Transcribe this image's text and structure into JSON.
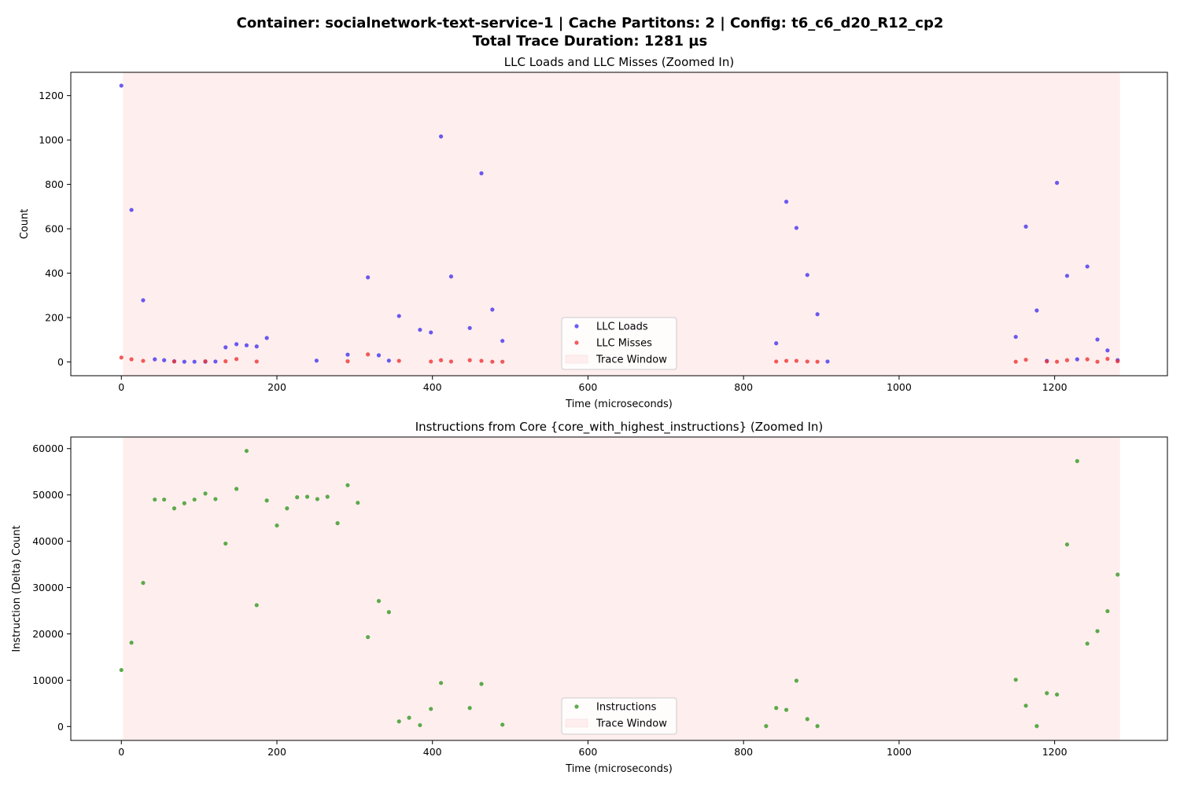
{
  "figure": {
    "title_line1": "Container: socialnetwork-text-service-1 | Cache Partitons: 2 | Config: t6_c6_d20_R12_cp2",
    "title_line2": "Total Trace Duration: 1281 µs"
  },
  "chart_data": [
    {
      "type": "scatter",
      "title": "LLC Loads and LLC Misses (Zoomed In)",
      "xlabel": "Time (microseconds)",
      "ylabel": "Count",
      "xlim": [
        -65,
        1345
      ],
      "ylim": [
        -62,
        1305
      ],
      "xticks": [
        0,
        200,
        400,
        600,
        800,
        1000,
        1200
      ],
      "yticks": [
        0,
        200,
        400,
        600,
        800,
        1000,
        1200
      ],
      "grid": false,
      "legend_position": "lower-center",
      "trace_window": {
        "label": "Trace Window",
        "x_start": 2,
        "x_end": 1284,
        "color": "#ffeeee"
      },
      "series": [
        {
          "name": "LLC Loads",
          "color": "#4433ee",
          "x": [
            0,
            13,
            28,
            43,
            55,
            68,
            81,
            94,
            108,
            121,
            134,
            148,
            161,
            174,
            187,
            251,
            291,
            317,
            331,
            344,
            357,
            384,
            398,
            411,
            424,
            448,
            463,
            477,
            490,
            842,
            855,
            868,
            882,
            895,
            908,
            1150,
            1163,
            1177,
            1190,
            1203,
            1216,
            1229,
            1242,
            1255,
            1268,
            1281
          ],
          "y": [
            1245,
            685,
            278,
            12,
            8,
            3,
            1,
            1,
            1,
            2,
            66,
            80,
            75,
            70,
            108,
            6,
            33,
            381,
            30,
            6,
            207,
            145,
            133,
            1016,
            385,
            153,
            850,
            236,
            95,
            84,
            722,
            604,
            392,
            215,
            2,
            113,
            610,
            232,
            5,
            807,
            388,
            12,
            430,
            101,
            52,
            8
          ]
        },
        {
          "name": "LLC Misses",
          "color": "#ee3333",
          "x": [
            0,
            13,
            28,
            68,
            108,
            134,
            148,
            174,
            291,
            317,
            357,
            398,
            411,
            424,
            448,
            463,
            477,
            490,
            842,
            855,
            868,
            882,
            895,
            1150,
            1163,
            1190,
            1203,
            1216,
            1242,
            1255,
            1268,
            1281
          ],
          "y": [
            20,
            12,
            5,
            2,
            3,
            3,
            13,
            2,
            3,
            34,
            5,
            2,
            8,
            2,
            8,
            5,
            1,
            1,
            2,
            5,
            5,
            2,
            1,
            1,
            10,
            2,
            1,
            8,
            12,
            1,
            14,
            3
          ]
        }
      ]
    },
    {
      "type": "scatter",
      "title": "Instructions from Core {core_with_highest_instructions} (Zoomed In)",
      "xlabel": "Time (microseconds)",
      "ylabel": "Instruction (Delta) Count",
      "xlim": [
        -65,
        1345
      ],
      "ylim": [
        -3000,
        62500
      ],
      "xticks": [
        0,
        200,
        400,
        600,
        800,
        1000,
        1200
      ],
      "yticks": [
        0,
        10000,
        20000,
        30000,
        40000,
        50000,
        60000
      ],
      "grid": false,
      "legend_position": "lower-center",
      "trace_window": {
        "label": "Trace Window",
        "x_start": 2,
        "x_end": 1284,
        "color": "#ffeeee"
      },
      "series": [
        {
          "name": "Instructions",
          "color": "#339922",
          "x": [
            0,
            13,
            28,
            43,
            55,
            68,
            81,
            94,
            108,
            121,
            134,
            148,
            161,
            174,
            187,
            200,
            213,
            226,
            239,
            252,
            265,
            278,
            291,
            304,
            317,
            331,
            344,
            357,
            370,
            384,
            398,
            411,
            448,
            463,
            490,
            829,
            842,
            855,
            868,
            882,
            895,
            1150,
            1163,
            1177,
            1190,
            1203,
            1216,
            1229,
            1242,
            1255,
            1268,
            1281
          ],
          "y": [
            12200,
            18100,
            31000,
            49000,
            49000,
            47100,
            48200,
            49000,
            50300,
            49100,
            39500,
            51300,
            59500,
            26200,
            48800,
            43400,
            47100,
            49500,
            49600,
            49100,
            49600,
            43900,
            52100,
            48300,
            19300,
            27100,
            24700,
            1100,
            1900,
            300,
            3800,
            9400,
            4000,
            9200,
            400,
            100,
            4000,
            3600,
            9900,
            1600,
            100,
            10100,
            4500,
            100,
            7200,
            6900,
            39300,
            57300,
            17900,
            20600,
            24900,
            32800
          ]
        }
      ]
    }
  ]
}
